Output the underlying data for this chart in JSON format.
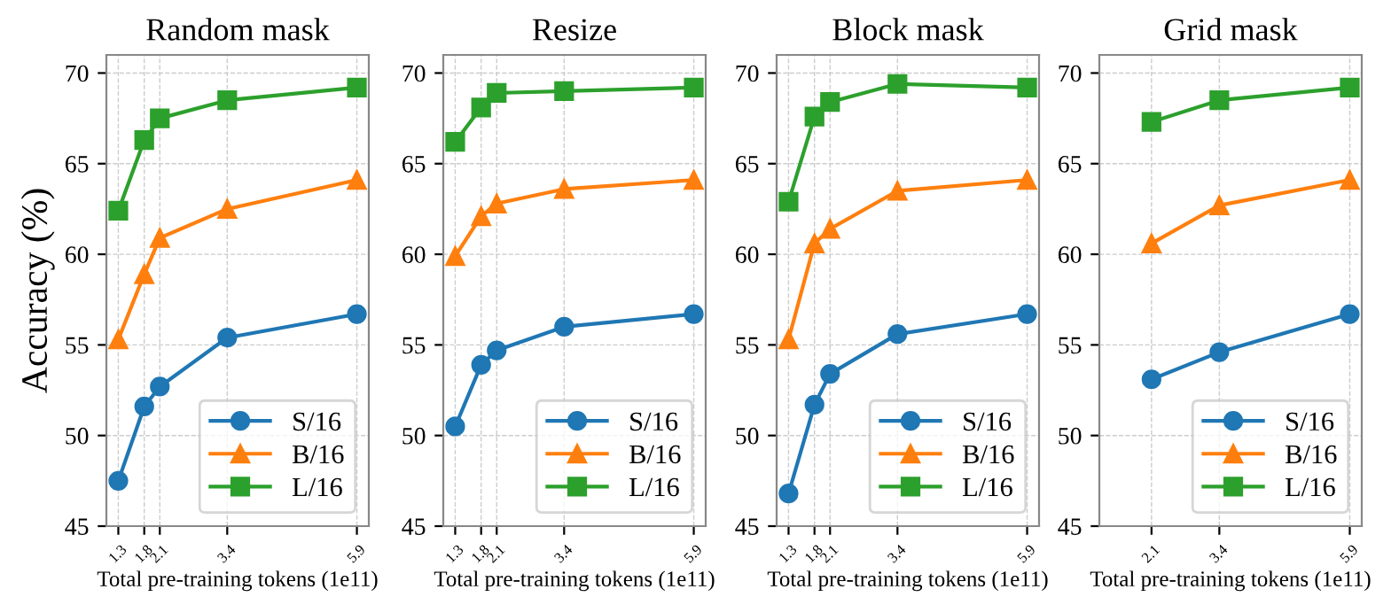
{
  "chart_data": [
    {
      "type": "line",
      "title": "Random mask",
      "xlabel": "Total pre-training tokens (1e11)",
      "ylabel": "Accuracy (%)",
      "x": [
        1.3,
        1.8,
        2.1,
        3.4,
        5.9
      ],
      "xlim": [
        1.07,
        6.13
      ],
      "xticks": [
        1.3,
        1.8,
        2.1,
        3.4,
        5.9
      ],
      "ylim": [
        45,
        71
      ],
      "yticks": [
        45,
        50,
        55,
        60,
        65,
        70
      ],
      "grid": true,
      "legend": "bottom right",
      "series": [
        {
          "name": "S/16",
          "color": "#1f77b4",
          "marker": "circle",
          "values": [
            47.5,
            51.6,
            52.7,
            55.4,
            56.7
          ]
        },
        {
          "name": "B/16",
          "color": "#ff7f0e",
          "marker": "triangle",
          "values": [
            55.3,
            58.9,
            60.9,
            62.5,
            64.1
          ]
        },
        {
          "name": "L/16",
          "color": "#2ca02c",
          "marker": "square",
          "values": [
            62.4,
            66.3,
            67.5,
            68.5,
            69.2
          ]
        }
      ]
    },
    {
      "type": "line",
      "title": "Resize",
      "xlabel": "Total pre-training tokens (1e11)",
      "x": [
        1.3,
        1.8,
        2.1,
        3.4,
        5.9
      ],
      "xlim": [
        1.07,
        6.13
      ],
      "xticks": [
        1.3,
        1.8,
        2.1,
        3.4,
        5.9
      ],
      "ylim": [
        45,
        71
      ],
      "yticks": [
        45,
        50,
        55,
        60,
        65,
        70
      ],
      "grid": true,
      "legend": "bottom right",
      "series": [
        {
          "name": "S/16",
          "color": "#1f77b4",
          "marker": "circle",
          "values": [
            50.5,
            53.9,
            54.7,
            56.0,
            56.7
          ]
        },
        {
          "name": "B/16",
          "color": "#ff7f0e",
          "marker": "triangle",
          "values": [
            59.9,
            62.1,
            62.8,
            63.6,
            64.1
          ]
        },
        {
          "name": "L/16",
          "color": "#2ca02c",
          "marker": "square",
          "values": [
            66.2,
            68.1,
            68.9,
            69.0,
            69.2
          ]
        }
      ]
    },
    {
      "type": "line",
      "title": "Block mask",
      "xlabel": "Total pre-training tokens (1e11)",
      "x": [
        1.3,
        1.8,
        2.1,
        3.4,
        5.9
      ],
      "xlim": [
        1.07,
        6.13
      ],
      "xticks": [
        1.3,
        1.8,
        2.1,
        3.4,
        5.9
      ],
      "ylim": [
        45,
        71
      ],
      "yticks": [
        45,
        50,
        55,
        60,
        65,
        70
      ],
      "grid": true,
      "legend": "bottom right",
      "series": [
        {
          "name": "S/16",
          "color": "#1f77b4",
          "marker": "circle",
          "values": [
            46.8,
            51.7,
            53.4,
            55.6,
            56.7
          ]
        },
        {
          "name": "B/16",
          "color": "#ff7f0e",
          "marker": "triangle",
          "values": [
            55.3,
            60.6,
            61.4,
            63.5,
            64.1
          ]
        },
        {
          "name": "L/16",
          "color": "#2ca02c",
          "marker": "square",
          "values": [
            62.9,
            67.6,
            68.4,
            69.4,
            69.2
          ]
        }
      ]
    },
    {
      "type": "line",
      "title": "Grid mask",
      "xlabel": "Total pre-training tokens (1e11)",
      "x": [
        2.1,
        3.4,
        5.9
      ],
      "xlim": [
        1.1,
        6.13
      ],
      "xticks": [
        2.1,
        3.4,
        5.9
      ],
      "ylim": [
        45,
        71
      ],
      "yticks": [
        45,
        50,
        55,
        60,
        65,
        70
      ],
      "grid": true,
      "legend": "bottom right",
      "series": [
        {
          "name": "S/16",
          "color": "#1f77b4",
          "marker": "circle",
          "values": [
            53.1,
            54.6,
            56.7
          ]
        },
        {
          "name": "B/16",
          "color": "#ff7f0e",
          "marker": "triangle",
          "values": [
            60.6,
            62.7,
            64.1
          ]
        },
        {
          "name": "L/16",
          "color": "#2ca02c",
          "marker": "square",
          "values": [
            67.3,
            68.5,
            69.2
          ]
        }
      ]
    }
  ]
}
